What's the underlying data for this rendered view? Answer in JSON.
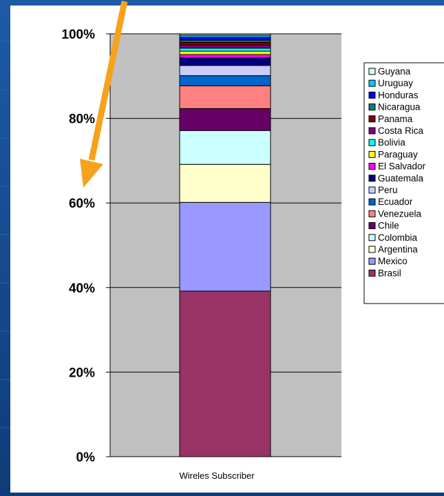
{
  "chart_data": {
    "type": "bar",
    "stacked": "100%",
    "categories": [
      "Wireles Subscriber"
    ],
    "series": [
      {
        "name": "Brasil",
        "values": [
          39.2
        ],
        "color": "#993366"
      },
      {
        "name": "Mexico",
        "values": [
          21.0
        ],
        "color": "#9999ff"
      },
      {
        "name": "Argentina",
        "values": [
          9.0
        ],
        "color": "#ffffcc"
      },
      {
        "name": "Colombia",
        "values": [
          8.0
        ],
        "color": "#ccffff"
      },
      {
        "name": "Chile",
        "values": [
          5.2
        ],
        "color": "#660066"
      },
      {
        "name": "Venezuela",
        "values": [
          5.4
        ],
        "color": "#ff8080"
      },
      {
        "name": "Ecuador",
        "values": [
          2.4
        ],
        "color": "#0066cc"
      },
      {
        "name": "Peru",
        "values": [
          2.4
        ],
        "color": "#ccccff"
      },
      {
        "name": "Guatemala",
        "values": [
          1.8
        ],
        "color": "#000080"
      },
      {
        "name": "El Salvador",
        "values": [
          0.8
        ],
        "color": "#ff00ff"
      },
      {
        "name": "Paraguay",
        "values": [
          0.8
        ],
        "color": "#ffff00"
      },
      {
        "name": "Bolivia",
        "values": [
          0.7
        ],
        "color": "#00ffff"
      },
      {
        "name": "Costa Rica",
        "values": [
          0.7
        ],
        "color": "#800080"
      },
      {
        "name": "Panama",
        "values": [
          0.7
        ],
        "color": "#800000"
      },
      {
        "name": "Nicaragua",
        "values": [
          0.5
        ],
        "color": "#008080"
      },
      {
        "name": "Honduras",
        "values": [
          0.7
        ],
        "color": "#0000ff"
      },
      {
        "name": "Uruguay",
        "values": [
          0.5
        ],
        "color": "#00ccff"
      },
      {
        "name": "Guyana",
        "values": [
          0.3
        ],
        "color": "#ccffff"
      }
    ],
    "y_ticks": [
      "100%",
      "80%",
      "60%",
      "40%",
      "20%",
      "0%"
    ],
    "ylim": [
      0,
      100
    ],
    "grid": true,
    "plot_background": "#c0c0c0",
    "legend_position": "right"
  },
  "annotation": {
    "arrow_color": "#f7a21b"
  }
}
